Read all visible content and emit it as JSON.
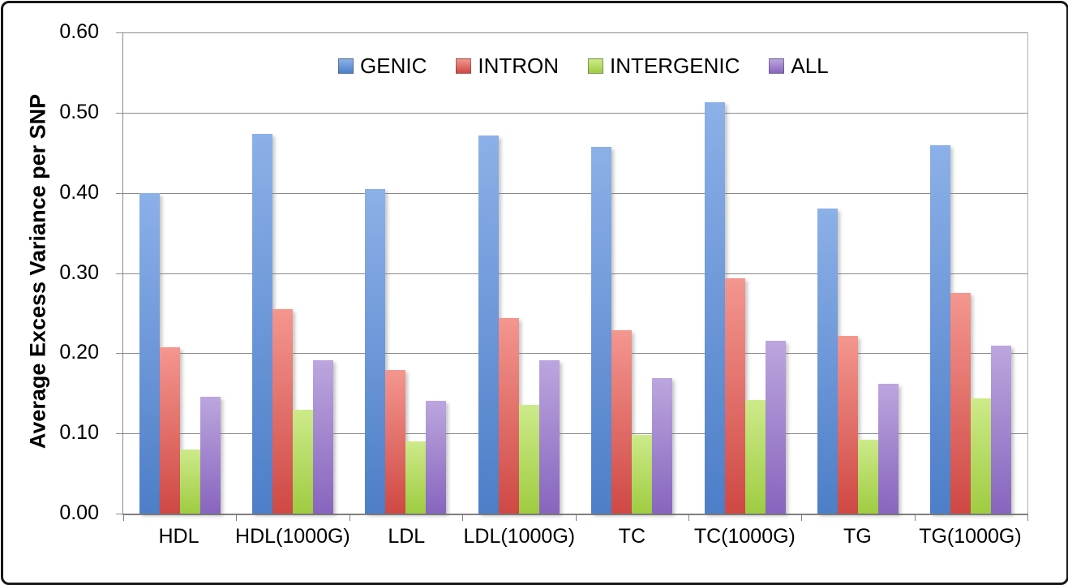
{
  "chart_data": {
    "type": "bar",
    "title": "",
    "ylabel": "Average Excess Variance per SNP",
    "xlabel": "",
    "ylim": [
      0,
      0.6
    ],
    "ytick_step": 0.1,
    "ytick_labels": [
      "0.00",
      "0.10",
      "0.20",
      "0.30",
      "0.40",
      "0.50",
      "0.60"
    ],
    "grid": true,
    "legend_position": "top-center",
    "categories": [
      "HDL",
      "HDL(1000G)",
      "LDL",
      "LDL(1000G)",
      "TC",
      "TC(1000G)",
      "TG",
      "TG(1000G)"
    ],
    "series": [
      {
        "name": "GENIC",
        "color": "#6f9ad8",
        "color_top": "#8cb0e8",
        "color_bottom": "#4d7ec8",
        "values": [
          0.4,
          0.474,
          0.405,
          0.472,
          0.457,
          0.513,
          0.38,
          0.459
        ]
      },
      {
        "name": "INTRON",
        "color": "#e2615c",
        "color_top": "#f4968f",
        "color_bottom": "#cf4844",
        "values": [
          0.207,
          0.255,
          0.179,
          0.244,
          0.229,
          0.293,
          0.222,
          0.275
        ]
      },
      {
        "name": "INTERGENIC",
        "color": "#b7dc64",
        "color_top": "#cdea8a",
        "color_bottom": "#9fcc41",
        "values": [
          0.08,
          0.13,
          0.09,
          0.136,
          0.098,
          0.142,
          0.092,
          0.144
        ]
      },
      {
        "name": "ALL",
        "color": "#a287ce",
        "color_top": "#bca6de",
        "color_bottom": "#8765be",
        "values": [
          0.146,
          0.191,
          0.141,
          0.191,
          0.169,
          0.216,
          0.162,
          0.21
        ]
      }
    ]
  }
}
